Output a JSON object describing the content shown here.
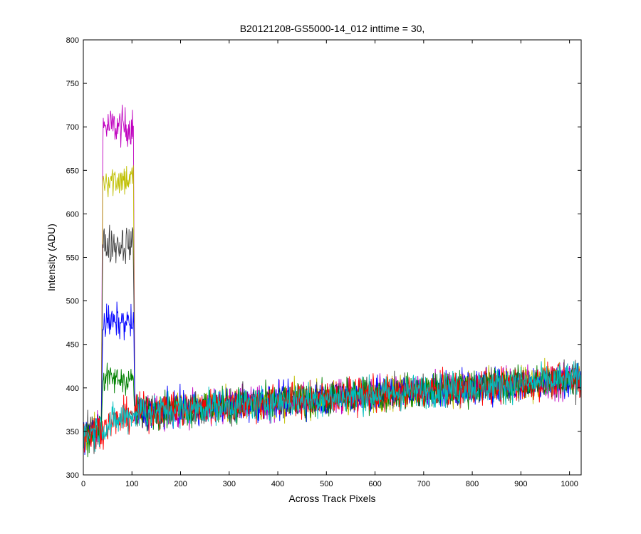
{
  "chart_data": {
    "type": "line",
    "title": "B20121208-GS5000-14_012 inttime = 30,",
    "xlabel": "Across Track Pixels",
    "ylabel": "Intensity (ADU)",
    "xlim": [
      0,
      1024
    ],
    "ylim": [
      300,
      800
    ],
    "xticks": [
      0,
      100,
      200,
      300,
      400,
      500,
      600,
      700,
      800,
      900,
      1000
    ],
    "yticks": [
      300,
      350,
      400,
      450,
      500,
      550,
      600,
      650,
      700,
      750,
      800
    ],
    "grid": false,
    "legend": "none",
    "baseline": {
      "start": [
        0,
        345
      ],
      "knee": [
        110,
        372
      ],
      "end": [
        1024,
        410
      ],
      "noise": 14
    },
    "peak_region": [
      38,
      105
    ],
    "series": [
      {
        "color": "#bf00bf",
        "peak_level": 700,
        "peak_noise": 16
      },
      {
        "color": "#bfbf00",
        "peak_level": 640,
        "peak_noise": 15
      },
      {
        "color": "#404040",
        "peak_level": 565,
        "peak_noise": 16
      },
      {
        "color": "#0000ff",
        "peak_level": 475,
        "peak_noise": 14
      },
      {
        "color": "#008000",
        "peak_level": 410,
        "peak_noise": 12
      },
      {
        "color": "#ff0000",
        "peak_level": null,
        "peak_noise": 0
      },
      {
        "color": "#00bfbf",
        "peak_level": null,
        "peak_noise": 0
      }
    ]
  }
}
